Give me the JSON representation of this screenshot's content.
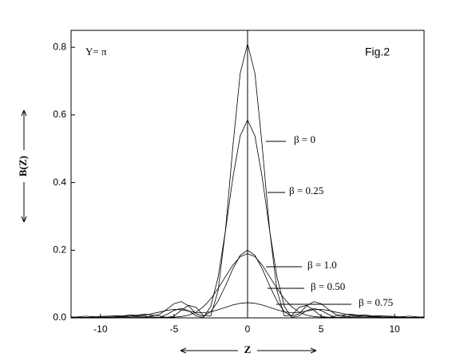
{
  "chart_data": {
    "type": "line",
    "annotation_left": "Y= π",
    "annotation_right": "Fig.2",
    "x_label": "Z",
    "y_label": "B(Z)",
    "x": [
      -12,
      -11,
      -10,
      -9,
      -8,
      -7,
      -6,
      -5.5,
      -5,
      -4.5,
      -4,
      -3.5,
      -3,
      -2.5,
      -2,
      -1.5,
      -1,
      -0.5,
      0,
      0.5,
      1,
      1.5,
      2,
      2.5,
      3,
      3.5,
      4,
      4.5,
      5,
      5.5,
      6,
      7,
      8,
      9,
      10,
      11,
      12
    ],
    "series": [
      {
        "name": "β = 0",
        "color": "#000000",
        "values": [
          0.003,
          0.001,
          0.004,
          0.006,
          0.005,
          0.011,
          0.006,
          0.001,
          0.005,
          0.023,
          0.037,
          0.031,
          0.007,
          0.006,
          0.081,
          0.26,
          0.506,
          0.723,
          0.81,
          0.723,
          0.506,
          0.26,
          0.081,
          0.006,
          0.007,
          0.031,
          0.037,
          0.023,
          0.005,
          0.001,
          0.006,
          0.011,
          0.005,
          0.006,
          0.004,
          0.001,
          0.003
        ]
      },
      {
        "name": "β = 0.25",
        "color": "#000000",
        "values": [
          0.001,
          0.005,
          0.002,
          0.001,
          0.009,
          0.005,
          0.001,
          0.01,
          0.022,
          0.028,
          0.021,
          0.006,
          0.001,
          0.034,
          0.121,
          0.258,
          0.414,
          0.538,
          0.585,
          0.538,
          0.414,
          0.258,
          0.121,
          0.034,
          0.001,
          0.006,
          0.021,
          0.028,
          0.022,
          0.01,
          0.001,
          0.005,
          0.009,
          0.001,
          0.002,
          0.005,
          0.001
        ]
      },
      {
        "name": "β = 1.0",
        "color": "#000000",
        "values": [
          0.001,
          0.001,
          0.001,
          0.001,
          0.001,
          0.001,
          0.001,
          0.002,
          0.002,
          0.004,
          0.008,
          0.017,
          0.033,
          0.056,
          0.087,
          0.122,
          0.156,
          0.181,
          0.19,
          0.181,
          0.156,
          0.122,
          0.087,
          0.056,
          0.033,
          0.017,
          0.008,
          0.004,
          0.002,
          0.002,
          0.001,
          0.001,
          0.001,
          0.001,
          0.001,
          0.001,
          0.001
        ]
      },
      {
        "name": "β = 0.50",
        "color": "#000000",
        "values": [
          0.001,
          0.001,
          0.001,
          0.003,
          0.005,
          0.002,
          0.01,
          0.025,
          0.042,
          0.048,
          0.035,
          0.012,
          0.005,
          0.018,
          0.05,
          0.095,
          0.145,
          0.185,
          0.2,
          0.185,
          0.145,
          0.095,
          0.05,
          0.018,
          0.005,
          0.012,
          0.035,
          0.048,
          0.042,
          0.025,
          0.01,
          0.002,
          0.005,
          0.003,
          0.001,
          0.001,
          0.001
        ]
      },
      {
        "name": "β = 0.75",
        "color": "#000000",
        "values": [
          0.001,
          0.001,
          0.002,
          0.003,
          0.004,
          0.008,
          0.017,
          0.022,
          0.025,
          0.024,
          0.02,
          0.016,
          0.015,
          0.018,
          0.024,
          0.031,
          0.038,
          0.043,
          0.045,
          0.043,
          0.038,
          0.031,
          0.024,
          0.018,
          0.015,
          0.016,
          0.02,
          0.024,
          0.025,
          0.022,
          0.017,
          0.008,
          0.004,
          0.003,
          0.002,
          0.001,
          0.001
        ]
      }
    ],
    "xlim": [
      -12,
      12
    ],
    "ylim": [
      0,
      0.85
    ],
    "xticks": [
      -10,
      -5,
      0,
      5,
      10
    ],
    "yticks": [
      {
        "value": 0,
        "label": "0.0"
      },
      0.2,
      0.4,
      0.6,
      0.8
    ]
  }
}
